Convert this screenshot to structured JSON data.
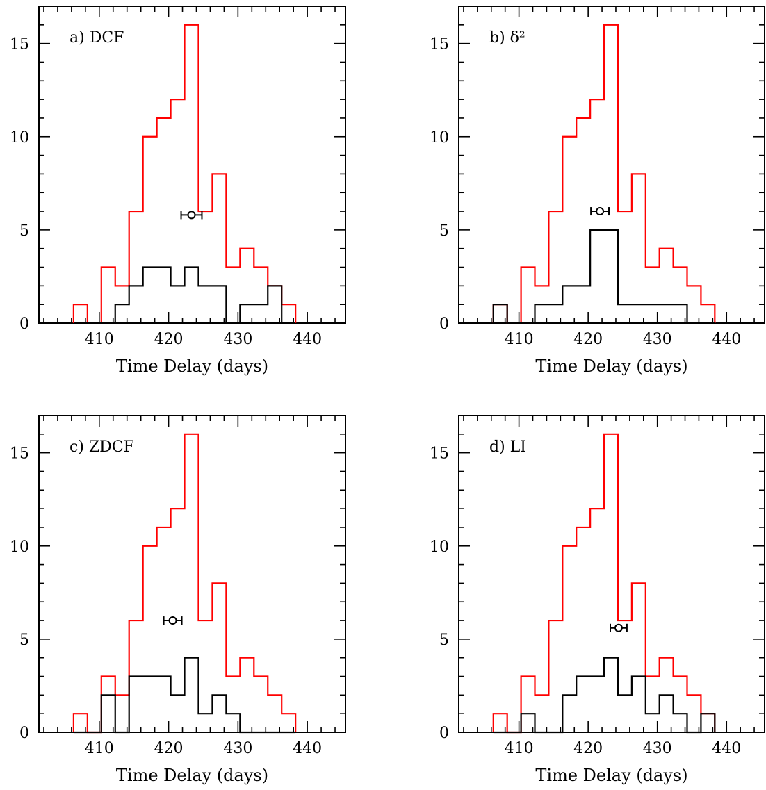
{
  "colors": {
    "red_series": "#ff0000",
    "black_series": "#000000"
  },
  "chart_data": [
    {
      "type": "histogram",
      "panel_label": "a) DCF",
      "xlabel": "Time Delay (days)",
      "ylabel": "",
      "xlim": [
        401.3,
        445.5
      ],
      "ylim": [
        0,
        17
      ],
      "xticks": [
        410,
        420,
        430,
        440
      ],
      "yticks": [
        0,
        5,
        10,
        15
      ],
      "bin_edges": [
        406.3,
        408.3,
        410.3,
        412.3,
        414.3,
        416.3,
        418.3,
        420.3,
        422.3,
        424.3,
        426.3,
        428.3,
        430.3,
        432.3,
        434.3,
        436.3,
        438.3
      ],
      "series": [
        {
          "color": "red",
          "values": [
            1,
            0,
            3,
            2,
            6,
            10,
            11,
            12,
            16,
            6,
            8,
            3,
            4,
            3,
            2,
            1
          ]
        },
        {
          "color": "black",
          "values": [
            0,
            0,
            0,
            1,
            2,
            3,
            3,
            2,
            3,
            2,
            2,
            0,
            1,
            1,
            2,
            0
          ]
        }
      ],
      "point": {
        "x": 423.3,
        "y": 5.8,
        "xerr": 1.5
      }
    },
    {
      "type": "histogram",
      "panel_label": "b) δ²",
      "xlabel": "Time Delay (days)",
      "ylabel": "",
      "xlim": [
        401.3,
        445.5
      ],
      "ylim": [
        0,
        17
      ],
      "xticks": [
        410,
        420,
        430,
        440
      ],
      "yticks": [
        0,
        5,
        10,
        15
      ],
      "bin_edges": [
        406.3,
        408.3,
        410.3,
        412.3,
        414.3,
        416.3,
        418.3,
        420.3,
        422.3,
        424.3,
        426.3,
        428.3,
        430.3,
        432.3,
        434.3,
        436.3,
        438.3
      ],
      "series": [
        {
          "color": "red",
          "values": [
            1,
            0,
            3,
            2,
            6,
            10,
            11,
            12,
            16,
            6,
            8,
            3,
            4,
            3,
            2,
            1
          ]
        },
        {
          "color": "black",
          "values": [
            1,
            0,
            0,
            1,
            1,
            2,
            2,
            5,
            5,
            1,
            1,
            1,
            1,
            1,
            0,
            0
          ]
        }
      ],
      "point": {
        "x": 421.7,
        "y": 6.0,
        "xerr": 1.3
      }
    },
    {
      "type": "histogram",
      "panel_label": "c) ZDCF",
      "xlabel": "Time Delay (days)",
      "ylabel": "",
      "xlim": [
        401.3,
        445.5
      ],
      "ylim": [
        0,
        17
      ],
      "xticks": [
        410,
        420,
        430,
        440
      ],
      "yticks": [
        0,
        5,
        10,
        15
      ],
      "bin_edges": [
        406.3,
        408.3,
        410.3,
        412.3,
        414.3,
        416.3,
        418.3,
        420.3,
        422.3,
        424.3,
        426.3,
        428.3,
        430.3,
        432.3,
        434.3,
        436.3,
        438.3
      ],
      "series": [
        {
          "color": "red",
          "values": [
            1,
            0,
            3,
            2,
            6,
            10,
            11,
            12,
            16,
            6,
            8,
            3,
            4,
            3,
            2,
            1
          ]
        },
        {
          "color": "black",
          "values": [
            0,
            0,
            2,
            0,
            3,
            3,
            3,
            2,
            4,
            1,
            2,
            1,
            0,
            0,
            0,
            0
          ]
        }
      ],
      "point": {
        "x": 420.6,
        "y": 6.0,
        "xerr": 1.3
      }
    },
    {
      "type": "histogram",
      "panel_label": "d) LI",
      "xlabel": "Time Delay (days)",
      "ylabel": "",
      "xlim": [
        401.3,
        445.5
      ],
      "ylim": [
        0,
        17
      ],
      "xticks": [
        410,
        420,
        430,
        440
      ],
      "yticks": [
        0,
        5,
        10,
        15
      ],
      "bin_edges": [
        406.3,
        408.3,
        410.3,
        412.3,
        414.3,
        416.3,
        418.3,
        420.3,
        422.3,
        424.3,
        426.3,
        428.3,
        430.3,
        432.3,
        434.3,
        436.3,
        438.3
      ],
      "series": [
        {
          "color": "red",
          "values": [
            1,
            0,
            3,
            2,
            6,
            10,
            11,
            12,
            16,
            6,
            8,
            3,
            4,
            3,
            2,
            1
          ]
        },
        {
          "color": "black",
          "values": [
            0,
            0,
            1,
            0,
            0,
            2,
            3,
            3,
            4,
            2,
            3,
            1,
            2,
            1,
            0,
            1
          ]
        }
      ],
      "point": {
        "x": 424.4,
        "y": 5.6,
        "xerr": 1.2
      }
    }
  ]
}
